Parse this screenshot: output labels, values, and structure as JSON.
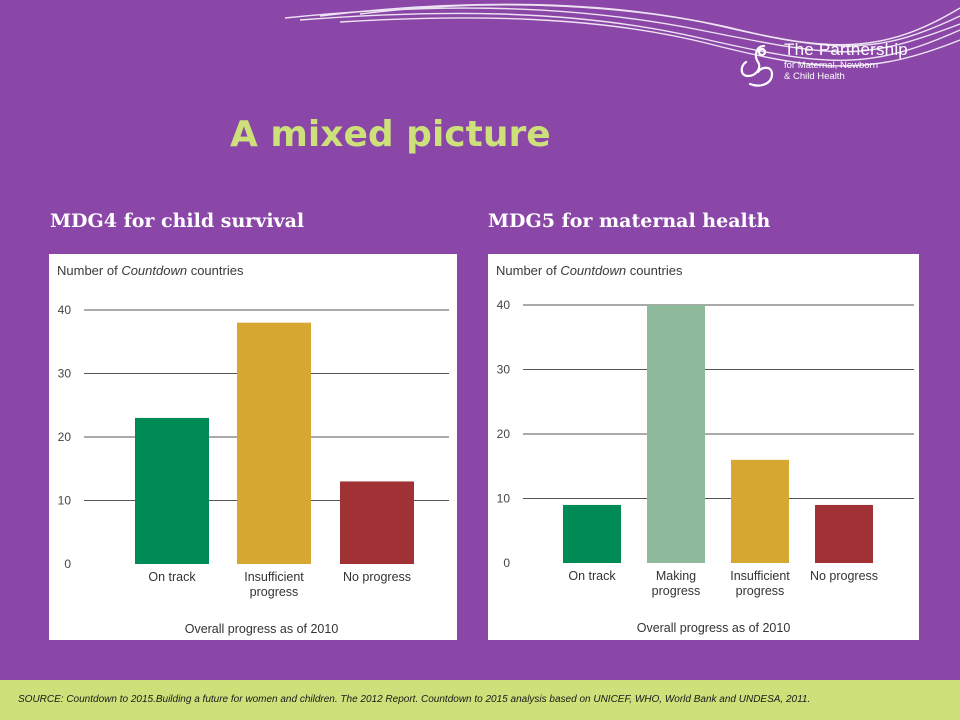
{
  "slide": {
    "title": "A mixed picture",
    "source": "SOURCE: Countdown to 2015.Building a future for women and children. The 2012 Report. Countdown to 2015 analysis based on UNICEF, WHO, World Bank and UNDESA, 2011."
  },
  "logo": {
    "name": "The Partnership",
    "line1": "for Maternal, Newborn",
    "line2": "& Child Health"
  },
  "colors": {
    "background": "#8a47a8",
    "title": "#cde07a",
    "footer": "#cde07a",
    "on_track": "#008a56",
    "making_progress": "#8fb99b",
    "insufficient_progress": "#d6a832",
    "no_progress": "#a03236"
  },
  "chart_data": [
    {
      "type": "bar",
      "heading": "MDG4 for child survival",
      "ylabel_prefix": "Number of ",
      "ylabel_italic": "Countdown",
      "ylabel_suffix": " countries",
      "xlabel": "Overall progress as of 2010",
      "categories": [
        [
          "On track"
        ],
        [
          "Insufficient",
          "progress"
        ],
        [
          "No progress"
        ]
      ],
      "values": [
        23,
        38,
        13
      ],
      "bar_colors": [
        "#008a56",
        "#d6a832",
        "#a03236"
      ],
      "ylim": [
        0,
        40
      ],
      "yticks": [
        0,
        10,
        20,
        30,
        40
      ],
      "grid": true
    },
    {
      "type": "bar",
      "heading": "MDG5 for maternal health",
      "ylabel_prefix": "Number of ",
      "ylabel_italic": "Countdown",
      "ylabel_suffix": " countries",
      "xlabel": "Overall progress as of 2010",
      "categories": [
        [
          "On track"
        ],
        [
          "Making",
          "progress"
        ],
        [
          "Insufficient",
          "progress"
        ],
        [
          "No progress"
        ]
      ],
      "values": [
        9,
        40,
        16,
        9
      ],
      "bar_colors": [
        "#008a56",
        "#8fb99b",
        "#d6a832",
        "#a03236"
      ],
      "ylim": [
        0,
        40
      ],
      "yticks": [
        0,
        10,
        20,
        30,
        40
      ],
      "grid": true
    }
  ]
}
